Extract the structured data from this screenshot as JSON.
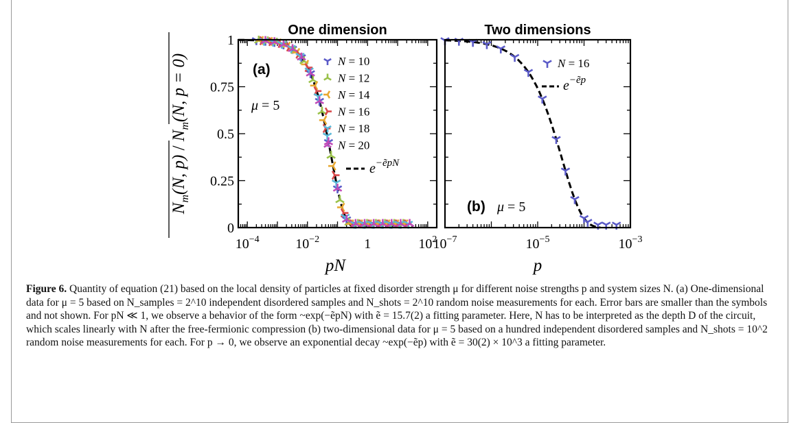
{
  "chart_data": [
    {
      "type": "scatter",
      "panel": "(a)",
      "title": "One dimension",
      "xlabel": "pN",
      "ylabel": "̅Nₘ(N, p)/̅Nₘ(N, p = 0)",
      "ylabel_parts": {
        "num": "N",
        "num_sub": "m",
        "num_args": "(N, p)",
        "den": "N",
        "den_sub": "m",
        "den_args": "(N, p = 0)"
      },
      "xscale": "log",
      "xlim": [
        5e-05,
        200
      ],
      "ylim": [
        0,
        1
      ],
      "x_ticks": [
        {
          "value": 0.0001,
          "base": "10",
          "exp": "−4"
        },
        {
          "value": 0.01,
          "base": "10",
          "exp": "−2"
        },
        {
          "value": 1,
          "base": "1",
          "exp": ""
        },
        {
          "value": 100,
          "base": "10",
          "exp": "2"
        }
      ],
      "y_ticks": [
        {
          "value": 0,
          "label": "0"
        },
        {
          "value": 0.25,
          "label": "0.25"
        },
        {
          "value": 0.5,
          "label": "0.5"
        },
        {
          "value": 0.75,
          "label": "0.75"
        },
        {
          "value": 1,
          "label": "1"
        }
      ],
      "annotation": {
        "lhs": "μ",
        "rhs": " = 5"
      },
      "fit": {
        "label_base": "e",
        "label_exp": "−ẽpN",
        "rate": 15.7
      },
      "series": [
        {
          "name": "N = 10",
          "color": "#5b5bc8",
          "marker": "tri_down",
          "x": [
            0.0002,
            0.0004,
            0.0008,
            0.0016,
            0.0032,
            0.0063,
            0.0126,
            0.0251,
            0.0501,
            0.1,
            0.2,
            0.4,
            0.8,
            1.6,
            3.2,
            6.3,
            12.6
          ],
          "y": [
            0.997,
            0.994,
            0.988,
            0.975,
            0.951,
            0.906,
            0.821,
            0.674,
            0.455,
            0.208,
            0.043,
            0.02,
            0.02,
            0.02,
            0.02,
            0.02,
            0.02
          ]
        },
        {
          "name": "N = 12",
          "color": "#9ac24a",
          "marker": "tri_up",
          "x": [
            0.00024,
            0.00048,
            0.00096,
            0.0019,
            0.0038,
            0.0077,
            0.0153,
            0.0306,
            0.061,
            0.12,
            0.24,
            0.48,
            0.96,
            1.9,
            3.8,
            7.7,
            15.4
          ],
          "y": [
            0.996,
            0.992,
            0.985,
            0.97,
            0.941,
            0.886,
            0.786,
            0.618,
            0.383,
            0.147,
            0.026,
            0.02,
            0.02,
            0.02,
            0.02,
            0.02,
            0.02
          ]
        },
        {
          "name": "N = 14",
          "color": "#e8a832",
          "marker": "tri_left",
          "x": [
            0.00028,
            0.00056,
            0.0011,
            0.0022,
            0.0045,
            0.0089,
            0.0178,
            0.0355,
            0.071,
            0.14,
            0.28,
            0.56,
            1.12,
            2.2,
            4.5,
            8.9,
            17.8
          ],
          "y": [
            0.996,
            0.991,
            0.983,
            0.966,
            0.932,
            0.869,
            0.756,
            0.572,
            0.328,
            0.108,
            0.02,
            0.02,
            0.02,
            0.02,
            0.02,
            0.02,
            0.02
          ]
        },
        {
          "name": "N = 16",
          "color": "#d8484a",
          "marker": "tri_right",
          "x": [
            0.00032,
            0.00064,
            0.0013,
            0.0025,
            0.0051,
            0.0102,
            0.0203,
            0.0406,
            0.081,
            0.16,
            0.32,
            0.64,
            1.28,
            2.6,
            5.1,
            10.2,
            20.3
          ],
          "y": [
            0.995,
            0.99,
            0.98,
            0.961,
            0.923,
            0.852,
            0.727,
            0.528,
            0.279,
            0.078,
            0.02,
            0.02,
            0.02,
            0.02,
            0.02,
            0.02,
            0.02
          ]
        },
        {
          "name": "N = 18",
          "color": "#5ab8d8",
          "marker": "tri_down",
          "x": [
            0.00036,
            0.00072,
            0.0014,
            0.0029,
            0.0057,
            0.0114,
            0.0228,
            0.0456,
            0.091,
            0.18,
            0.36,
            0.72,
            1.44,
            2.9,
            5.7,
            11.4,
            22.8
          ],
          "y": [
            0.994,
            0.989,
            0.978,
            0.956,
            0.914,
            0.836,
            0.699,
            0.489,
            0.239,
            0.057,
            0.02,
            0.02,
            0.02,
            0.02,
            0.02,
            0.02,
            0.02
          ]
        },
        {
          "name": "N = 20",
          "color": "#c04ab8",
          "marker": "tri_up",
          "x": [
            0.0004,
            0.0008,
            0.0016,
            0.0032,
            0.0063,
            0.0126,
            0.0251,
            0.0501,
            0.1,
            0.2,
            0.4,
            0.8,
            1.6,
            3.2,
            6.3,
            12.6,
            25.1
          ],
          "y": [
            0.994,
            0.988,
            0.975,
            0.951,
            0.906,
            0.821,
            0.674,
            0.455,
            0.208,
            0.043,
            0.02,
            0.02,
            0.02,
            0.02,
            0.02,
            0.02,
            0.02
          ]
        }
      ],
      "legend_position": "upper-right"
    },
    {
      "type": "scatter",
      "panel": "(b)",
      "title": "Two dimensions",
      "xlabel": "p",
      "xscale": "log",
      "xlim": [
        1e-07,
        0.001
      ],
      "ylim": [
        0,
        1
      ],
      "x_ticks": [
        {
          "value": 1e-07,
          "base": "10",
          "exp": "−7"
        },
        {
          "value": 1e-05,
          "base": "10",
          "exp": "−5"
        },
        {
          "value": 0.001,
          "base": "10",
          "exp": "−3"
        }
      ],
      "annotation": {
        "lhs": "μ",
        "rhs": " = 5"
      },
      "fit": {
        "label_base": "e",
        "label_exp": "−ẽp",
        "rate": 30000
      },
      "series": [
        {
          "name": "N = 16",
          "color": "#5b5bc8",
          "marker": "tri_down",
          "x": [
            1e-07,
            2e-07,
            4e-07,
            8e-07,
            1.6e-06,
            3.2e-06,
            6.3e-06,
            1.26e-05,
            2.51e-05,
            3.98e-05,
            6.31e-05,
            0.0001,
            0.00012,
            0.0002,
            0.0003,
            0.0005
          ],
          "y": [
            0.997,
            0.994,
            0.988,
            0.976,
            0.953,
            0.908,
            0.828,
            0.686,
            0.471,
            0.303,
            0.151,
            0.05,
            0.03,
            0.015,
            0.015,
            0.015
          ]
        }
      ],
      "legend_position": "upper-right"
    }
  ],
  "caption": {
    "label": "Figure 6.",
    "text": " Quantity of equation (21) based on the local density of particles at fixed disorder strength μ for different noise strengths p and system sizes N. (a) One-dimensional data for μ = 5 based on N_samples = 2^10 independent disordered samples and N_shots = 2^10 random noise measurements for each. Error bars are smaller than the symbols and not shown. For pN ≪ 1, we observe a behavior of the form ~exp(−ẽpN) with ẽ = 15.7(2) a fitting parameter. Here, N has to be interpreted as the depth D of the circuit, which scales linearly with N after the free-fermionic compression (b) two-dimensional data for μ = 5 based on a hundred independent disordered samples and N_shots = 10^2 random noise measurements for each. For p → 0, we observe an exponential decay ~exp(−ẽp) with ẽ = 30(2) × 10^3 a fitting parameter."
  }
}
